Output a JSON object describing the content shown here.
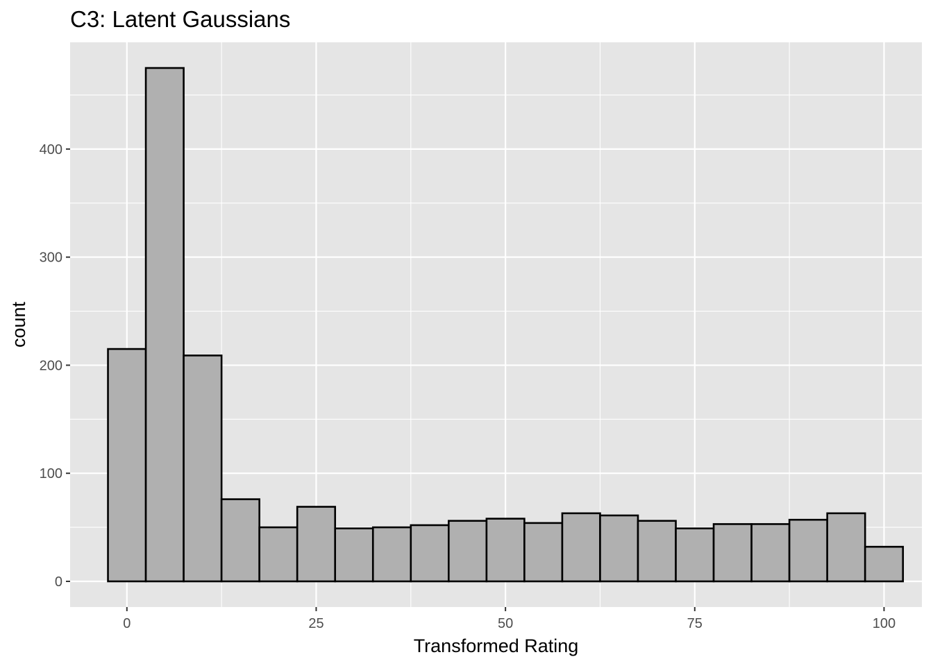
{
  "chart_data": {
    "type": "bar",
    "title": "C3: Latent Gaussians",
    "xlabel": "Transformed Rating",
    "ylabel": "count",
    "bin_width": 5,
    "bins": [
      {
        "x": 0,
        "count": 215
      },
      {
        "x": 5,
        "count": 475
      },
      {
        "x": 10,
        "count": 209
      },
      {
        "x": 15,
        "count": 76
      },
      {
        "x": 20,
        "count": 50
      },
      {
        "x": 25,
        "count": 69
      },
      {
        "x": 30,
        "count": 49
      },
      {
        "x": 35,
        "count": 50
      },
      {
        "x": 40,
        "count": 52
      },
      {
        "x": 45,
        "count": 56
      },
      {
        "x": 50,
        "count": 58
      },
      {
        "x": 55,
        "count": 54
      },
      {
        "x": 60,
        "count": 63
      },
      {
        "x": 65,
        "count": 61
      },
      {
        "x": 70,
        "count": 56
      },
      {
        "x": 75,
        "count": 49
      },
      {
        "x": 80,
        "count": 53
      },
      {
        "x": 85,
        "count": 53
      },
      {
        "x": 90,
        "count": 57
      },
      {
        "x": 95,
        "count": 63
      },
      {
        "x": 100,
        "count": 32
      }
    ],
    "xlim": [
      -7.5,
      105
    ],
    "ylim": [
      -23.75,
      498.75
    ],
    "x_ticks": [
      0,
      25,
      50,
      75,
      100
    ],
    "x_tick_labels": [
      "0",
      "25",
      "50",
      "75",
      "100"
    ],
    "y_ticks": [
      0,
      100,
      200,
      300,
      400
    ],
    "y_tick_labels": [
      "0",
      "100",
      "200",
      "300",
      "400"
    ],
    "grid": true,
    "colors": {
      "panel": "#e5e5e5",
      "grid": "#ffffff",
      "bar_fill": "#b0b0b0",
      "bar_stroke": "#000000",
      "tick_text": "#4d4d4d"
    }
  }
}
